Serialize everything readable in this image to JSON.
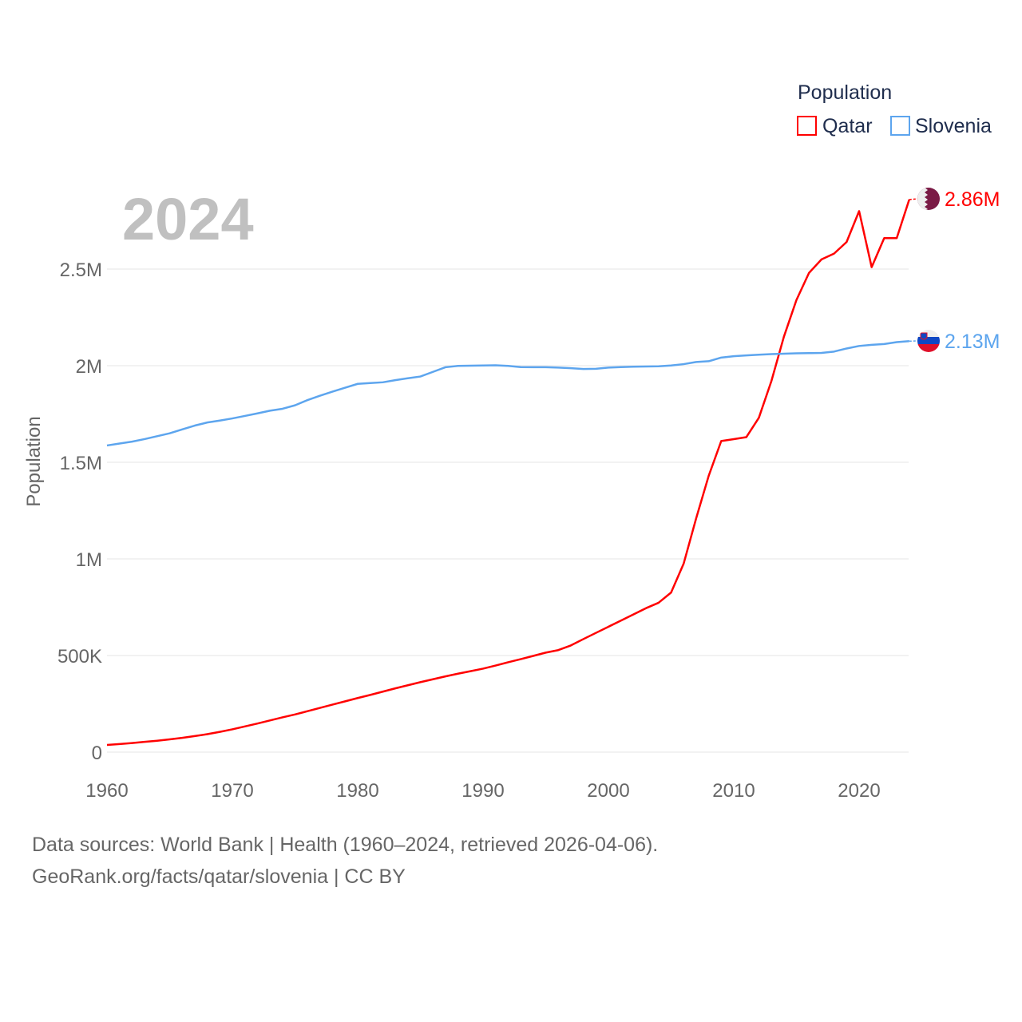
{
  "chart_data": {
    "type": "line",
    "title": "",
    "big_year": "2024",
    "ylabel": "Population",
    "xlabel": "",
    "xlim": [
      1960,
      2024
    ],
    "ylim": [
      0,
      2500000
    ],
    "x_ticks": [
      1960,
      1970,
      1980,
      1990,
      2000,
      2010,
      2020
    ],
    "x_tick_labels": [
      "1960",
      "1970",
      "1980",
      "1990",
      "2000",
      "2010",
      "2020"
    ],
    "y_ticks": [
      0,
      500000,
      1000000,
      1500000,
      2000000,
      2500000
    ],
    "y_tick_labels": [
      "0",
      "500K",
      "1M",
      "1.5M",
      "2M",
      "2.5M"
    ],
    "grid": true,
    "legend": {
      "title": "Population",
      "placement": "top-right"
    },
    "x": [
      1960,
      1961,
      1962,
      1963,
      1964,
      1965,
      1966,
      1967,
      1968,
      1969,
      1970,
      1971,
      1972,
      1973,
      1974,
      1975,
      1976,
      1977,
      1978,
      1979,
      1980,
      1981,
      1982,
      1983,
      1984,
      1985,
      1986,
      1987,
      1988,
      1989,
      1990,
      1991,
      1992,
      1993,
      1994,
      1995,
      1996,
      1997,
      1998,
      1999,
      2000,
      2001,
      2002,
      2003,
      2004,
      2005,
      2006,
      2007,
      2008,
      2009,
      2010,
      2011,
      2012,
      2013,
      2014,
      2015,
      2016,
      2017,
      2018,
      2019,
      2020,
      2021,
      2022,
      2023,
      2024
    ],
    "series": [
      {
        "name": "Qatar",
        "color": "#ff0000",
        "end_label": "2.86M",
        "flag": "qatar-flag",
        "values": [
          37000,
          42000,
          47000,
          53000,
          59000,
          66000,
          74000,
          83000,
          93000,
          105000,
          118000,
          133000,
          148000,
          164000,
          180000,
          195000,
          212000,
          229000,
          246000,
          263000,
          280000,
          296000,
          313000,
          330000,
          346000,
          362000,
          377000,
          392000,
          406000,
          419000,
          432000,
          448000,
          465000,
          481000,
          498000,
          515000,
          528000,
          552000,
          585000,
          617000,
          649000,
          681000,
          713000,
          745000,
          773000,
          826000,
          975000,
          1210000,
          1430000,
          1610000,
          1620000,
          1630000,
          1730000,
          1920000,
          2150000,
          2340000,
          2480000,
          2550000,
          2580000,
          2640000,
          2800000,
          2510000,
          2660000,
          2660000,
          2860000
        ]
      },
      {
        "name": "Slovenia",
        "color": "#5da5ee",
        "end_label": "2.13M",
        "flag": "slovenia-flag",
        "values": [
          1587000,
          1597000,
          1607000,
          1620000,
          1635000,
          1650000,
          1670000,
          1690000,
          1706000,
          1716000,
          1727000,
          1740000,
          1753000,
          1767000,
          1777000,
          1795000,
          1822000,
          1845000,
          1866000,
          1886000,
          1906000,
          1910000,
          1914000,
          1925000,
          1935000,
          1944000,
          1968000,
          1992000,
          1999000,
          2000000,
          2001000,
          2002000,
          1999000,
          1993000,
          1992000,
          1992000,
          1990000,
          1987000,
          1983000,
          1984000,
          1990000,
          1993000,
          1995000,
          1996000,
          1997000,
          2001000,
          2008000,
          2019000,
          2023000,
          2042000,
          2049000,
          2053000,
          2057000,
          2060000,
          2062000,
          2064000,
          2065000,
          2066000,
          2073000,
          2089000,
          2102000,
          2108000,
          2112000,
          2122000,
          2127000
        ]
      }
    ]
  },
  "footer": {
    "line1": "Data sources: World Bank | Health (1960–2024, retrieved 2026-04-06).",
    "line2": "GeoRank.org/facts/qatar/slovenia | CC BY"
  }
}
